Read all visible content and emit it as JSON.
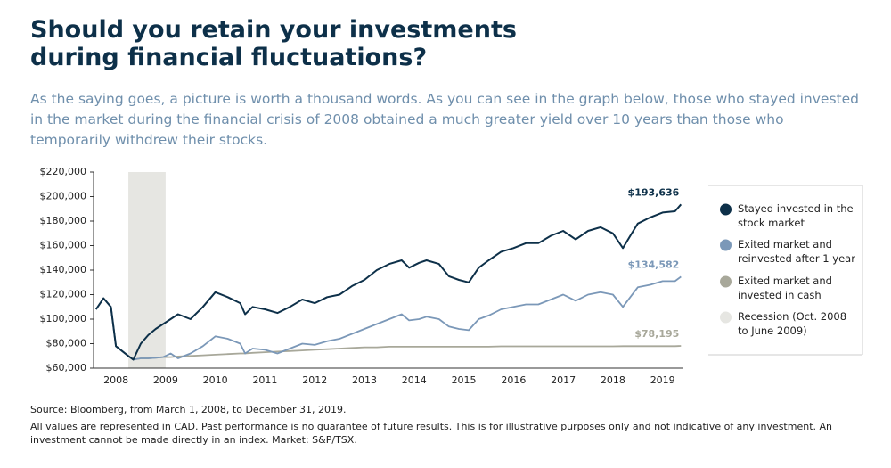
{
  "chart_data": {
    "type": "line",
    "title": "Should you retain your investments during financial fluctuations?",
    "subtitle": "As the saying goes, a picture is worth a thousand words. As you can see in the graph below, those who stayed invested in the market during the financial crisis of 2008 obtained a much greater yield over 10 years than those who temporarily withdrew their stocks.",
    "source": "Source: Bloomberg, from March 1, 2008, to December 31, 2019.",
    "note": "All values are represented in CAD. Past performance is no guarantee of future results. This is for illustrative purposes only and not indicative of any investment. An investment cannot be made directly in an index. Market: S&P/TSX.",
    "x": [
      2008.1,
      2008.25,
      2008.4,
      2008.5,
      2008.75,
      2008.85,
      2009.0,
      2009.15,
      2009.3,
      2009.45,
      2009.6,
      2009.75,
      2010.0,
      2010.25,
      2010.5,
      2010.75,
      2011.0,
      2011.1,
      2011.25,
      2011.5,
      2011.75,
      2012.0,
      2012.25,
      2012.5,
      2012.75,
      2013.0,
      2013.25,
      2013.5,
      2013.75,
      2014.0,
      2014.25,
      2014.4,
      2014.6,
      2014.75,
      2015.0,
      2015.2,
      2015.4,
      2015.6,
      2015.8,
      2016.0,
      2016.25,
      2016.5,
      2016.75,
      2017.0,
      2017.25,
      2017.5,
      2017.75,
      2018.0,
      2018.25,
      2018.5,
      2018.7,
      2018.85,
      2019.0,
      2019.25,
      2019.5,
      2019.75,
      2019.87
    ],
    "series": [
      {
        "name": "Stayed invested in the stock market",
        "color": "#0d3049",
        "end_label": "$193,636",
        "values": [
          108000,
          117000,
          110000,
          78000,
          70000,
          67000,
          80000,
          87000,
          92000,
          96000,
          100000,
          104000,
          100000,
          110000,
          122000,
          118000,
          113000,
          104000,
          110000,
          108000,
          105000,
          110000,
          116000,
          113000,
          118000,
          120000,
          127000,
          132000,
          140000,
          145000,
          148000,
          142000,
          146000,
          148000,
          145000,
          135000,
          132000,
          130000,
          142000,
          148000,
          155000,
          158000,
          162000,
          162000,
          168000,
          172000,
          165000,
          172000,
          175000,
          170000,
          158000,
          168000,
          178000,
          183000,
          187000,
          188000,
          193636
        ]
      },
      {
        "name": "Exited market and reinvested after 1 year",
        "color": "#7b98b8",
        "end_label": "$134,582",
        "values": [
          108000,
          117000,
          110000,
          78000,
          70000,
          67000,
          68000,
          68000,
          68500,
          69000,
          72000,
          68000,
          72000,
          78000,
          86000,
          84000,
          80000,
          72000,
          76000,
          75000,
          72000,
          76000,
          80000,
          79000,
          82000,
          84000,
          88000,
          92000,
          96000,
          100000,
          104000,
          99000,
          100000,
          102000,
          100000,
          94000,
          92000,
          91000,
          100000,
          103000,
          108000,
          110000,
          112000,
          112000,
          116000,
          120000,
          115000,
          120000,
          122000,
          120000,
          110000,
          118000,
          126000,
          128000,
          131000,
          131000,
          134582
        ]
      },
      {
        "name": "Exited market and invested in cash",
        "color": "#a8a89a",
        "end_label": "$78,195",
        "values": [
          108000,
          117000,
          110000,
          78000,
          70000,
          67000,
          68000,
          68000,
          68500,
          69000,
          69000,
          69500,
          70000,
          70500,
          71000,
          71500,
          72000,
          72000,
          72500,
          73000,
          73500,
          74000,
          74500,
          75000,
          75500,
          76000,
          76500,
          77000,
          77000,
          77500,
          77500,
          77500,
          77500,
          77500,
          77500,
          77500,
          77500,
          77500,
          77500,
          77500,
          77800,
          77800,
          77800,
          77800,
          77800,
          77800,
          77800,
          77800,
          77800,
          77800,
          78000,
          78000,
          78000,
          78000,
          78000,
          78000,
          78195
        ]
      }
    ],
    "recession": {
      "name": "Recession (Oct. 2008 to June 2009)",
      "start": 2008.75,
      "end": 2009.5,
      "color": "#e6e6e2"
    },
    "xlim": [
      2008.05,
      2019.9
    ],
    "xticks": [
      {
        "value": 2008.5,
        "label": "2008"
      },
      {
        "value": 2009.5,
        "label": "2009"
      },
      {
        "value": 2010.5,
        "label": "2010"
      },
      {
        "value": 2011.5,
        "label": "2011"
      },
      {
        "value": 2012.5,
        "label": "2012"
      },
      {
        "value": 2013.5,
        "label": "2013"
      },
      {
        "value": 2014.5,
        "label": "2014"
      },
      {
        "value": 2015.5,
        "label": "2015"
      },
      {
        "value": 2016.5,
        "label": "2016"
      },
      {
        "value": 2017.5,
        "label": "2017"
      },
      {
        "value": 2018.5,
        "label": "2018"
      },
      {
        "value": 2019.5,
        "label": "2019"
      }
    ],
    "ylim": [
      60000,
      220000
    ],
    "yticks": [
      {
        "value": 60000,
        "label": "$60,000"
      },
      {
        "value": 80000,
        "label": "$80,000"
      },
      {
        "value": 100000,
        "label": "$100,000"
      },
      {
        "value": 120000,
        "label": "$120,000"
      },
      {
        "value": 140000,
        "label": "$140,000"
      },
      {
        "value": 160000,
        "label": "$160,000"
      },
      {
        "value": 180000,
        "label": "$180,000"
      },
      {
        "value": 200000,
        "label": "$200,000"
      },
      {
        "value": 220000,
        "label": "$220,000"
      }
    ],
    "grid": false,
    "legend": "right"
  }
}
